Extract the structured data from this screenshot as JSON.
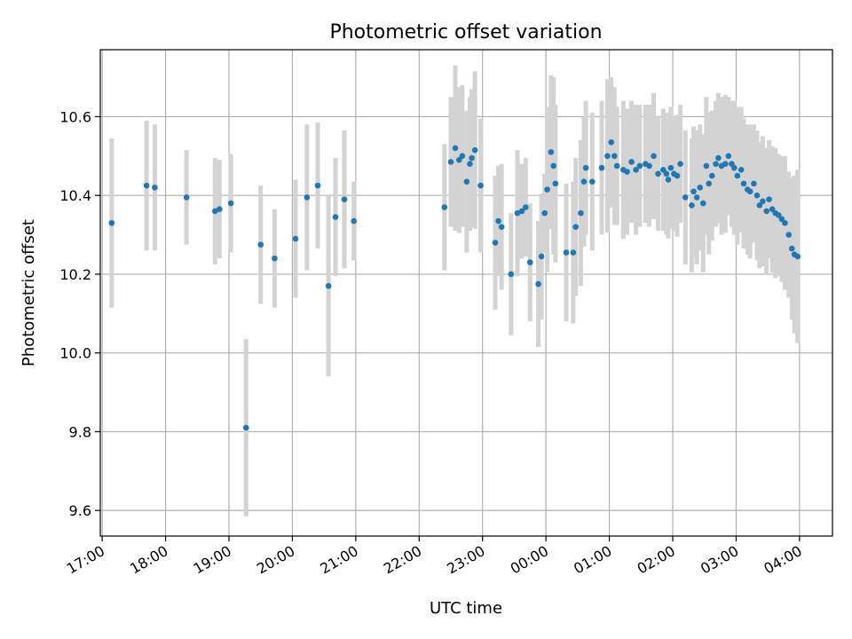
{
  "chart_data": {
    "type": "scatter",
    "title": "Photometric offset variation",
    "xlabel": "UTC time",
    "ylabel": "Photometric offset",
    "x_axis_type": "time",
    "x_ticks": [
      "17:00",
      "18:00",
      "19:00",
      "20:00",
      "21:00",
      "22:00",
      "23:00",
      "00:00",
      "01:00",
      "02:00",
      "03:00",
      "04:00"
    ],
    "x_tick_values_hours": [
      17,
      18,
      19,
      20,
      21,
      22,
      23,
      24,
      25,
      26,
      27,
      28
    ],
    "xlim_hours": [
      16.97,
      28.52
    ],
    "y_ticks": [
      "9.6",
      "9.8",
      "10.0",
      "10.2",
      "10.4",
      "10.6"
    ],
    "y_tick_values": [
      9.6,
      9.8,
      10.0,
      10.2,
      10.4,
      10.6
    ],
    "ylim": [
      9.535,
      10.77
    ],
    "grid": true,
    "series_color": "#1f77b4",
    "errorbar_color": "#d3d3d3",
    "x_hours": [
      17.15,
      17.7,
      17.83,
      18.33,
      18.78,
      18.85,
      19.03,
      19.27,
      19.5,
      19.72,
      20.05,
      20.23,
      20.4,
      20.57,
      20.68,
      20.82,
      20.97,
      22.4,
      22.5,
      22.57,
      22.63,
      22.68,
      22.75,
      22.8,
      22.83,
      22.88,
      22.97,
      23.2,
      23.25,
      23.3,
      23.45,
      23.55,
      23.62,
      23.68,
      23.75,
      23.88,
      23.93,
      23.98,
      24.02,
      24.08,
      24.12,
      24.15,
      24.32,
      24.43,
      24.47,
      24.55,
      24.6,
      24.63,
      24.73,
      24.88,
      24.97,
      25.03,
      25.08,
      25.12,
      25.22,
      25.28,
      25.35,
      25.42,
      25.48,
      25.57,
      25.63,
      25.7,
      25.77,
      25.85,
      25.9,
      25.93,
      25.97,
      26.02,
      26.07,
      26.12,
      26.2,
      26.3,
      26.33,
      26.38,
      26.43,
      26.48,
      26.53,
      26.57,
      26.62,
      26.68,
      26.72,
      26.77,
      26.83,
      26.88,
      26.93,
      26.97,
      27.02,
      27.08,
      27.12,
      27.18,
      27.22,
      27.28,
      27.33,
      27.37,
      27.42,
      27.48,
      27.52,
      27.57,
      27.62,
      27.67,
      27.72,
      27.77,
      27.83,
      27.88,
      27.92,
      27.97
    ],
    "y_values": [
      10.33,
      10.425,
      10.42,
      10.395,
      10.36,
      10.365,
      10.38,
      9.81,
      10.275,
      10.24,
      10.29,
      10.395,
      10.425,
      10.17,
      10.345,
      10.39,
      10.335,
      10.37,
      10.485,
      10.52,
      10.49,
      10.5,
      10.435,
      10.48,
      10.495,
      10.515,
      10.425,
      10.28,
      10.335,
      10.32,
      10.2,
      10.355,
      10.36,
      10.37,
      10.23,
      10.175,
      10.245,
      10.355,
      10.415,
      10.51,
      10.475,
      10.43,
      10.255,
      10.255,
      10.32,
      10.355,
      10.435,
      10.47,
      10.435,
      10.47,
      10.5,
      10.535,
      10.5,
      10.475,
      10.465,
      10.46,
      10.485,
      10.465,
      10.475,
      10.48,
      10.475,
      10.5,
      10.455,
      10.465,
      10.455,
      10.44,
      10.47,
      10.455,
      10.45,
      10.48,
      10.395,
      10.375,
      10.41,
      10.395,
      10.42,
      10.38,
      10.475,
      10.43,
      10.45,
      10.48,
      10.495,
      10.475,
      10.48,
      10.5,
      10.48,
      10.47,
      10.45,
      10.465,
      10.43,
      10.415,
      10.41,
      10.43,
      10.4,
      10.375,
      10.385,
      10.36,
      10.39,
      10.365,
      10.355,
      10.35,
      10.34,
      10.33,
      10.3,
      10.265,
      10.25,
      10.245
    ],
    "y_errors": [
      0.215,
      0.165,
      0.16,
      0.12,
      0.135,
      0.125,
      0.125,
      0.225,
      0.15,
      0.125,
      0.15,
      0.185,
      0.16,
      0.23,
      0.15,
      0.175,
      0.1,
      0.16,
      0.165,
      0.21,
      0.185,
      0.18,
      0.18,
      0.17,
      0.175,
      0.2,
      0.17,
      0.17,
      0.14,
      0.16,
      0.155,
      0.16,
      0.12,
      0.125,
      0.15,
      0.16,
      0.16,
      0.1,
      0.21,
      0.195,
      0.225,
      0.2,
      0.175,
      0.18,
      0.175,
      0.185,
      0.165,
      0.17,
      0.175,
      0.17,
      0.195,
      0.165,
      0.175,
      0.15,
      0.175,
      0.16,
      0.155,
      0.165,
      0.155,
      0.15,
      0.155,
      0.16,
      0.145,
      0.155,
      0.155,
      0.15,
      0.155,
      0.145,
      0.155,
      0.15,
      0.17,
      0.17,
      0.165,
      0.17,
      0.16,
      0.175,
      0.175,
      0.18,
      0.165,
      0.16,
      0.165,
      0.175,
      0.175,
      0.15,
      0.16,
      0.17,
      0.175,
      0.16,
      0.165,
      0.165,
      0.17,
      0.15,
      0.165,
      0.16,
      0.165,
      0.16,
      0.15,
      0.16,
      0.165,
      0.155,
      0.16,
      0.17,
      0.16,
      0.18,
      0.2,
      0.22
    ]
  }
}
